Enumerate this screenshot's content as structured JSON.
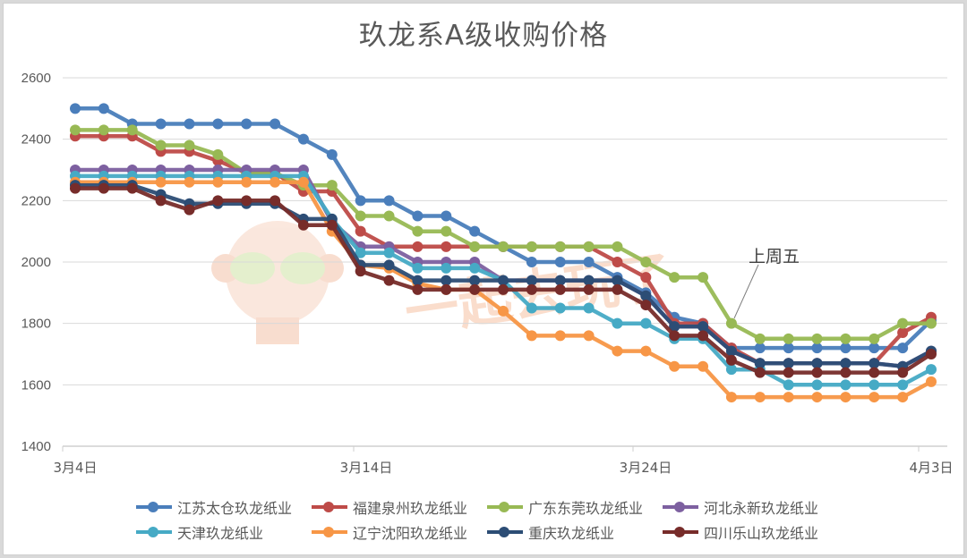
{
  "chart_data": {
    "type": "line",
    "title": "玖龙系A级收购价格",
    "xlabel": "",
    "ylabel": "",
    "ylim": [
      1400,
      2600
    ],
    "yticks": [
      1400,
      1600,
      1800,
      2000,
      2200,
      2400,
      2600
    ],
    "xtick_labels": [
      "3月4日",
      "3月14日",
      "3月24日",
      "4月3日"
    ],
    "grid": true,
    "legend_position": "bottom",
    "annotation": {
      "text": "上周五",
      "point_index": 23,
      "series": "广东东莞玖龙纸业"
    },
    "x": [
      "3/4",
      "3/5",
      "3/6",
      "3/7",
      "3/8",
      "3/9",
      "3/10",
      "3/11",
      "3/12",
      "3/13",
      "3/14",
      "3/15",
      "3/16",
      "3/17",
      "3/18",
      "3/19",
      "3/20",
      "3/21",
      "3/22",
      "3/23",
      "3/24",
      "3/25",
      "3/26",
      "3/27",
      "3/28",
      "3/29",
      "3/30",
      "3/31",
      "4/1",
      "4/2",
      "4/3"
    ],
    "series": [
      {
        "name": "江苏太仓玖龙纸业",
        "color": "#4a7ebb",
        "values": [
          2500,
          2500,
          2450,
          2450,
          2450,
          2450,
          2450,
          2450,
          2400,
          2350,
          2200,
          2200,
          2150,
          2150,
          2100,
          2050,
          2000,
          2000,
          2000,
          1950,
          1900,
          1820,
          1800,
          1720,
          1720,
          1720,
          1720,
          1720,
          1720,
          1720,
          1810
        ]
      },
      {
        "name": "福建泉州玖龙纸业",
        "color": "#be4b48",
        "values": [
          2410,
          2410,
          2410,
          2360,
          2360,
          2330,
          2290,
          2290,
          2230,
          2230,
          2100,
          2050,
          2050,
          2050,
          2050,
          2050,
          2050,
          2050,
          2050,
          2000,
          1950,
          1800,
          1800,
          1720,
          1670,
          1670,
          1670,
          1670,
          1670,
          1770,
          1820
        ]
      },
      {
        "name": "广东东莞玖龙纸业",
        "color": "#98b954",
        "values": [
          2430,
          2430,
          2430,
          2380,
          2380,
          2350,
          2290,
          2290,
          2250,
          2250,
          2150,
          2150,
          2100,
          2100,
          2050,
          2050,
          2050,
          2050,
          2050,
          2050,
          2000,
          1950,
          1950,
          1800,
          1750,
          1750,
          1750,
          1750,
          1750,
          1800,
          1800
        ]
      },
      {
        "name": "河北永新玖龙纸业",
        "color": "#7d60a0",
        "values": [
          2300,
          2300,
          2300,
          2300,
          2300,
          2300,
          2300,
          2300,
          2300,
          2130,
          2050,
          2050,
          2000,
          2000,
          2000,
          1940,
          1940,
          1940,
          1940,
          1940,
          1890,
          1790,
          1790,
          1710,
          1670,
          1670,
          1670,
          1670,
          1670,
          1660,
          1710
        ]
      },
      {
        "name": "天津玖龙纸业",
        "color": "#46aac5",
        "values": [
          2280,
          2280,
          2280,
          2280,
          2280,
          2280,
          2280,
          2280,
          2280,
          2140,
          2030,
          2030,
          1980,
          1980,
          1980,
          1940,
          1850,
          1850,
          1850,
          1800,
          1800,
          1750,
          1750,
          1650,
          1650,
          1600,
          1600,
          1600,
          1600,
          1600,
          1650
        ]
      },
      {
        "name": "辽宁沈阳玖龙纸业",
        "color": "#f79646",
        "values": [
          2260,
          2260,
          2260,
          2260,
          2260,
          2260,
          2260,
          2260,
          2260,
          2100,
          1990,
          1980,
          1930,
          1910,
          1910,
          1840,
          1760,
          1760,
          1760,
          1710,
          1710,
          1660,
          1660,
          1560,
          1560,
          1560,
          1560,
          1560,
          1560,
          1560,
          1610
        ]
      },
      {
        "name": "重庆玖龙纸业",
        "color": "#2c4d75",
        "values": [
          2250,
          2250,
          2250,
          2220,
          2190,
          2190,
          2190,
          2190,
          2140,
          2140,
          1990,
          1990,
          1940,
          1940,
          1940,
          1940,
          1940,
          1940,
          1940,
          1940,
          1890,
          1790,
          1790,
          1710,
          1670,
          1670,
          1670,
          1670,
          1670,
          1660,
          1710
        ]
      },
      {
        "name": "四川乐山玖龙纸业",
        "color": "#772c2a",
        "values": [
          2240,
          2240,
          2240,
          2200,
          2170,
          2200,
          2200,
          2200,
          2120,
          2120,
          1970,
          1940,
          1910,
          1910,
          1910,
          1910,
          1910,
          1910,
          1910,
          1910,
          1860,
          1760,
          1760,
          1680,
          1640,
          1640,
          1640,
          1640,
          1640,
          1640,
          1700
        ]
      }
    ]
  },
  "legend": {
    "items": [
      {
        "label": "江苏太仓玖龙纸业",
        "color": "#4a7ebb"
      },
      {
        "label": "福建泉州玖龙纸业",
        "color": "#be4b48"
      },
      {
        "label": "广东东莞玖龙纸业",
        "color": "#98b954"
      },
      {
        "label": "河北永新玖龙纸业",
        "color": "#7d60a0"
      },
      {
        "label": "天津玖龙纸业",
        "color": "#46aac5"
      },
      {
        "label": "辽宁沈阳玖龙纸业",
        "color": "#f79646"
      },
      {
        "label": "重庆玖龙纸业",
        "color": "#2c4d75"
      },
      {
        "label": "四川乐山玖龙纸业",
        "color": "#772c2a"
      }
    ]
  },
  "annotation_text": "上周五"
}
